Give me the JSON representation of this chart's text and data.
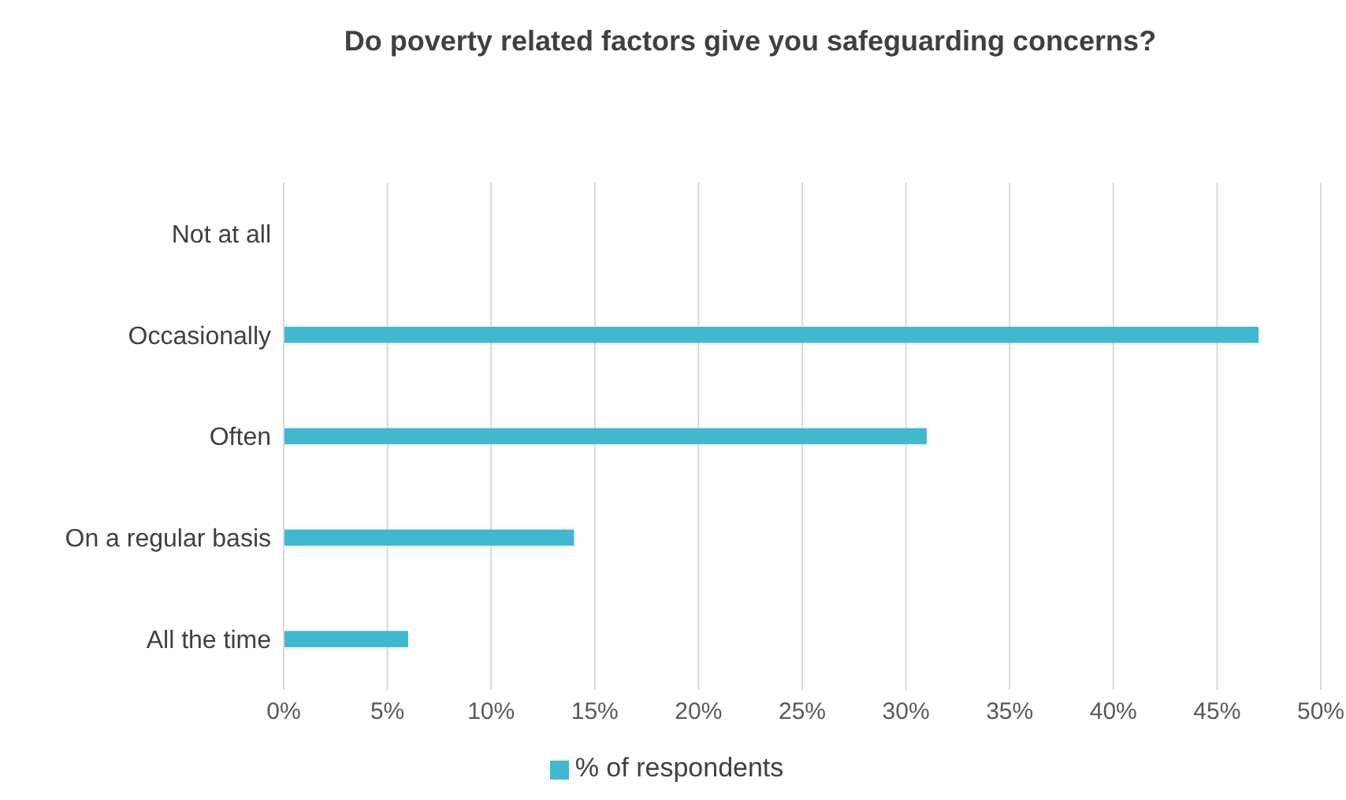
{
  "chart_data": {
    "type": "bar",
    "orientation": "horizontal",
    "title": "Do poverty related factors give you safeguarding concerns?",
    "categories": [
      "Not at all",
      "Occasionally",
      "Often",
      "On a regular basis",
      "All the time"
    ],
    "series": [
      {
        "name": "% of respondents",
        "color": "#3fb8d0",
        "values": [
          0,
          47,
          31,
          14,
          6
        ]
      }
    ],
    "xlim": [
      0,
      50
    ],
    "xticks": [
      {
        "value": 0,
        "label": "0%"
      },
      {
        "value": 5,
        "label": "5%"
      },
      {
        "value": 10,
        "label": "10%"
      },
      {
        "value": 15,
        "label": "15%"
      },
      {
        "value": 20,
        "label": "20%"
      },
      {
        "value": 25,
        "label": "25%"
      },
      {
        "value": 30,
        "label": "30%"
      },
      {
        "value": 35,
        "label": "35%"
      },
      {
        "value": 40,
        "label": "40%"
      },
      {
        "value": 45,
        "label": "45%"
      },
      {
        "value": 50,
        "label": "50%"
      }
    ],
    "grid": "x",
    "legend": "bottom"
  }
}
